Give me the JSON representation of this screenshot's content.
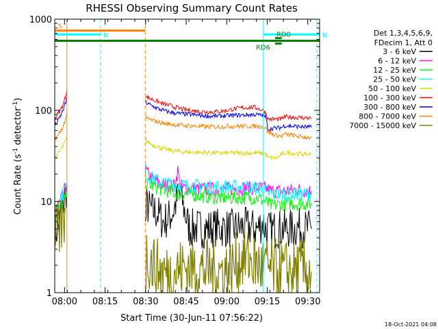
{
  "chart_data": {
    "type": "line",
    "title": "RHESSI Observing Summary Count Rates",
    "xlabel": "Start Time (30-Jun-11 07:56:22)",
    "ylabel_prefix": "Count Rate (s",
    "ylabel_sup": "-1",
    "ylabel_suffix": " detector",
    "ylabel_close": ")",
    "x_unit": "minutes after 07:56:22",
    "x_range": [
      0,
      98
    ],
    "y_scale": "log",
    "y_range": [
      1,
      1000
    ],
    "xticks": [
      {
        "value": 3.63,
        "label": "08:00"
      },
      {
        "value": 18.63,
        "label": "08:15"
      },
      {
        "value": 33.63,
        "label": "08:30"
      },
      {
        "value": 48.63,
        "label": "08:45"
      },
      {
        "value": 63.63,
        "label": "09:00"
      },
      {
        "value": 78.63,
        "label": "09:15"
      },
      {
        "value": 93.63,
        "label": "09:30"
      }
    ],
    "yticks": [
      {
        "value": 1,
        "label": "1"
      },
      {
        "value": 10,
        "label": "10"
      },
      {
        "value": 100,
        "label": "100"
      },
      {
        "value": 1000,
        "label": "1000"
      }
    ],
    "legend_header": [
      "Det 1,3,4,5,6,9,",
      "FDecim 1, Att 0"
    ],
    "legend_position": "right",
    "series": [
      {
        "name": "3 - 6 keV",
        "color": "#000000",
        "x": [
          0,
          1,
          2,
          3,
          4,
          4.5,
          33.5,
          34,
          36,
          38,
          40,
          42,
          44,
          45,
          46,
          47,
          48,
          49,
          50,
          52,
          55,
          60,
          65,
          70,
          75,
          77,
          78,
          80,
          82,
          85,
          88,
          90,
          93,
          95
        ],
        "y": [
          4.5,
          5,
          6.5,
          9,
          12,
          15,
          5,
          9,
          8,
          7.5,
          6,
          6.5,
          8,
          10,
          12,
          11,
          8,
          6,
          5,
          5.2,
          5,
          5.2,
          5,
          5.3,
          5,
          6,
          5,
          4.8,
          5,
          5,
          5,
          5.2,
          5,
          5
        ]
      },
      {
        "name": "6 - 12 keV",
        "color": "#ff00ff",
        "x": [
          0,
          2,
          4,
          4.5,
          33.5,
          34,
          36,
          40,
          44,
          45,
          45.5,
          46,
          46.5,
          47,
          50,
          60,
          70,
          78,
          80,
          85,
          90,
          95
        ],
        "y": [
          8,
          10,
          14,
          16,
          22,
          21,
          18,
          15,
          15,
          18,
          22,
          18,
          15,
          14,
          14,
          13.5,
          14,
          14,
          13,
          13,
          13.5,
          13
        ]
      },
      {
        "name": "12 - 25 keV",
        "color": "#00ff00",
        "x": [
          0,
          2,
          4,
          4.5,
          33.5,
          34,
          38,
          42,
          46,
          50,
          55,
          60,
          65,
          70,
          75,
          78,
          80,
          85,
          90,
          95
        ],
        "y": [
          7,
          8.5,
          11,
          13,
          18,
          16,
          14,
          13,
          12,
          12,
          11.5,
          11,
          11,
          11,
          11,
          10,
          9,
          9.5,
          9.5,
          9.5
        ]
      },
      {
        "name": "25 - 50 keV",
        "color": "#00ffff",
        "x": [
          0,
          2,
          4,
          4.5,
          33.5,
          34,
          38,
          42,
          46,
          50,
          55,
          60,
          65,
          70,
          75,
          78,
          80,
          85,
          90,
          95
        ],
        "y": [
          9,
          10.5,
          14,
          16,
          22,
          19,
          17,
          15.5,
          15,
          15,
          14.5,
          14.5,
          14.5,
          14.5,
          14,
          13,
          12,
          12,
          12,
          12
        ]
      },
      {
        "name": "50 - 100 keV",
        "color": "#d8d800",
        "x": [
          0,
          1,
          2,
          3,
          4,
          4.5,
          33.5,
          34,
          36,
          38,
          40,
          44,
          48,
          52,
          56,
          60,
          65,
          70,
          75,
          78,
          79,
          82,
          83,
          84,
          85,
          88,
          92,
          95
        ],
        "y": [
          30,
          33,
          36,
          40,
          46,
          50,
          48,
          46,
          42,
          40,
          38,
          36,
          35,
          34.5,
          34.5,
          34,
          34,
          34,
          34,
          33.5,
          30,
          30,
          31,
          33,
          34,
          34,
          33,
          33
        ]
      },
      {
        "name": "100 - 300 keV",
        "color": "#ff0000",
        "x": [
          0,
          1,
          2,
          3,
          4,
          4.5,
          33.5,
          34,
          36,
          38,
          40,
          43,
          46,
          50,
          54,
          58,
          62,
          66,
          70,
          74,
          77,
          78,
          79,
          80,
          82,
          84,
          85,
          88,
          92,
          95
        ],
        "y": [
          80,
          90,
          100,
          115,
          140,
          170,
          145,
          140,
          132,
          125,
          118,
          112,
          105,
          100,
          97,
          96,
          98,
          103,
          107,
          108,
          100,
          95,
          80,
          80,
          80,
          80,
          85,
          84,
          83,
          82
        ]
      },
      {
        "name": "300 - 800 keV",
        "color": "#0000ff",
        "x": [
          0,
          1,
          2,
          3,
          4,
          4.5,
          33.5,
          34,
          36,
          38,
          40,
          43,
          46,
          50,
          54,
          58,
          62,
          66,
          70,
          74,
          77,
          78,
          79,
          80,
          82,
          84,
          85,
          88,
          92,
          95
        ],
        "y": [
          68,
          75,
          85,
          100,
          120,
          140,
          125,
          120,
          112,
          105,
          100,
          95,
          92,
          90,
          88,
          86,
          87,
          88,
          89,
          90,
          88,
          85,
          62,
          63,
          64,
          65,
          68,
          67,
          66,
          65
        ]
      },
      {
        "name": "800 - 7000 keV",
        "color": "#ff8000",
        "x": [
          0,
          1,
          2,
          3,
          4,
          4.5,
          33.5,
          34,
          36,
          38,
          40,
          44,
          48,
          52,
          56,
          60,
          65,
          70,
          75,
          77,
          78,
          79,
          80,
          82,
          84,
          85,
          88,
          92,
          95
        ],
        "y": [
          48,
          52,
          58,
          65,
          80,
          95,
          85,
          82,
          78,
          75,
          72,
          70,
          68,
          67,
          66,
          66,
          67,
          67,
          67,
          66,
          64,
          58,
          56,
          53,
          52,
          55,
          53,
          51,
          50
        ]
      },
      {
        "name": "7000 - 15000 keV",
        "color": "#808000",
        "x": [
          0,
          1,
          2,
          3,
          4,
          33.5,
          34,
          38,
          42,
          46,
          50,
          55,
          60,
          65,
          70,
          75,
          80,
          85,
          90,
          95
        ],
        "y": [
          4,
          4.5,
          5,
          6,
          8,
          1.8,
          2.5,
          1.8,
          1.6,
          1.8,
          1.9,
          1.8,
          1.7,
          1.8,
          2.5,
          2,
          1.8,
          1.7,
          1.8,
          1.7
        ]
      }
    ],
    "annotations": {
      "flags": [
        {
          "label": "S",
          "color": "#ff8000",
          "x_start": 0,
          "x_end": 33.5,
          "y": 750
        },
        {
          "label": "N",
          "color": "#00ffff",
          "x_start": 0,
          "x_end": 17,
          "y": 680
        },
        {
          "label": "N",
          "color": "#00ffff",
          "x_start": 77.2,
          "x_end": 98,
          "y": 680
        },
        {
          "label": "",
          "color": "#008000",
          "x_start": 0,
          "x_end": 98,
          "y": 580
        },
        {
          "label": "RD6",
          "color": "#008000",
          "x_start": 81.5,
          "x_end": 84,
          "y": 540
        },
        {
          "label": "RD0",
          "color": "#008000",
          "x_start": 81.5,
          "x_end": 84,
          "y": 620
        }
      ],
      "vlines": [
        {
          "x": 0,
          "color": "#00ffff",
          "style": "solid"
        },
        {
          "x": 4.5,
          "color": "#ff8000",
          "style": "solid"
        },
        {
          "x": 17,
          "color": "#00ffff",
          "style": "dashed"
        },
        {
          "x": 33.5,
          "color": "#ff8000",
          "style": "dashed"
        },
        {
          "x": 77.2,
          "color": "#00ffff",
          "style": "solid"
        },
        {
          "x": 97,
          "color": "#00ffff",
          "style": "dashed"
        }
      ]
    }
  },
  "footer_date": "18-Oct-2021 04:08"
}
